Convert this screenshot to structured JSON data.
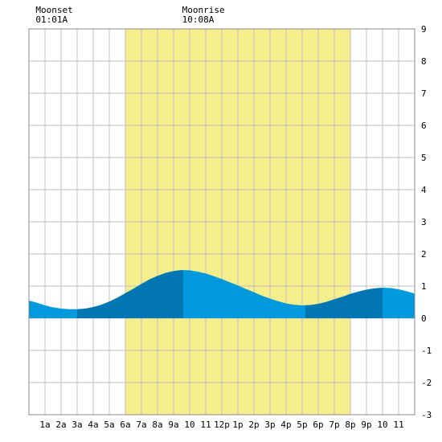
{
  "chart_data": {
    "type": "area",
    "title": "",
    "xlabel": "",
    "ylabel": "",
    "x_ticks": [
      "1a",
      "2a",
      "3a",
      "4a",
      "5a",
      "6a",
      "7a",
      "8a",
      "9a",
      "10",
      "11",
      "12p",
      "1p",
      "2p",
      "3p",
      "4p",
      "5p",
      "6p",
      "7p",
      "8p",
      "9p",
      "10",
      "11"
    ],
    "y_ticks": [
      "9",
      "8",
      "7",
      "6",
      "5",
      "4",
      "3",
      "2",
      "1",
      "0",
      "-1",
      "-2",
      "-3"
    ],
    "ylim": [
      -3,
      9
    ],
    "xlim_hours": [
      0,
      24
    ],
    "grid": true,
    "daylight_hours": [
      6,
      20
    ],
    "annotations": [
      {
        "label": "Moonset",
        "time": "01:01A",
        "hour": 1.02
      },
      {
        "label": "Moonrise",
        "time": "10:08A",
        "hour": 10.13
      }
    ],
    "series": [
      {
        "x": [
          0,
          0.5,
          1,
          1.5,
          2,
          2.5,
          3,
          3.5,
          4,
          4.5,
          5,
          5.5,
          6,
          6.5,
          7,
          7.5,
          8,
          8.5,
          9,
          9.5,
          10,
          10.5,
          11,
          11.5,
          12,
          12.5,
          13,
          13.5,
          14,
          14.5,
          15,
          15.5,
          16,
          16.5,
          17,
          17.5,
          18,
          18.5,
          19,
          19.5,
          20,
          20.5,
          21,
          21.5,
          22,
          22.5,
          23,
          23.5,
          24
        ],
        "values": [
          0.55,
          0.48,
          0.4,
          0.34,
          0.3,
          0.28,
          0.28,
          0.3,
          0.35,
          0.42,
          0.52,
          0.64,
          0.78,
          0.92,
          1.07,
          1.21,
          1.32,
          1.41,
          1.47,
          1.5,
          1.49,
          1.45,
          1.39,
          1.31,
          1.22,
          1.12,
          1.02,
          0.91,
          0.81,
          0.7,
          0.61,
          0.53,
          0.46,
          0.42,
          0.4,
          0.41,
          0.45,
          0.51,
          0.59,
          0.67,
          0.76,
          0.83,
          0.89,
          0.93,
          0.95,
          0.94,
          0.9,
          0.84,
          0.77
        ]
      }
    ],
    "tide_bands": [
      {
        "from": 0,
        "to": 3,
        "shade": "light"
      },
      {
        "from": 3,
        "to": 9.6,
        "shade": "dark"
      },
      {
        "from": 9.6,
        "to": 17.2,
        "shade": "light"
      },
      {
        "from": 17.2,
        "to": 22.0,
        "shade": "dark"
      },
      {
        "from": 22.0,
        "to": 24,
        "shade": "light"
      }
    ]
  },
  "colors": {
    "daylight": "#f5ee8c",
    "water_light": "#0099dd",
    "water_dark": "#0077b3",
    "grid": "#bfbfbf",
    "border": "#888888"
  }
}
